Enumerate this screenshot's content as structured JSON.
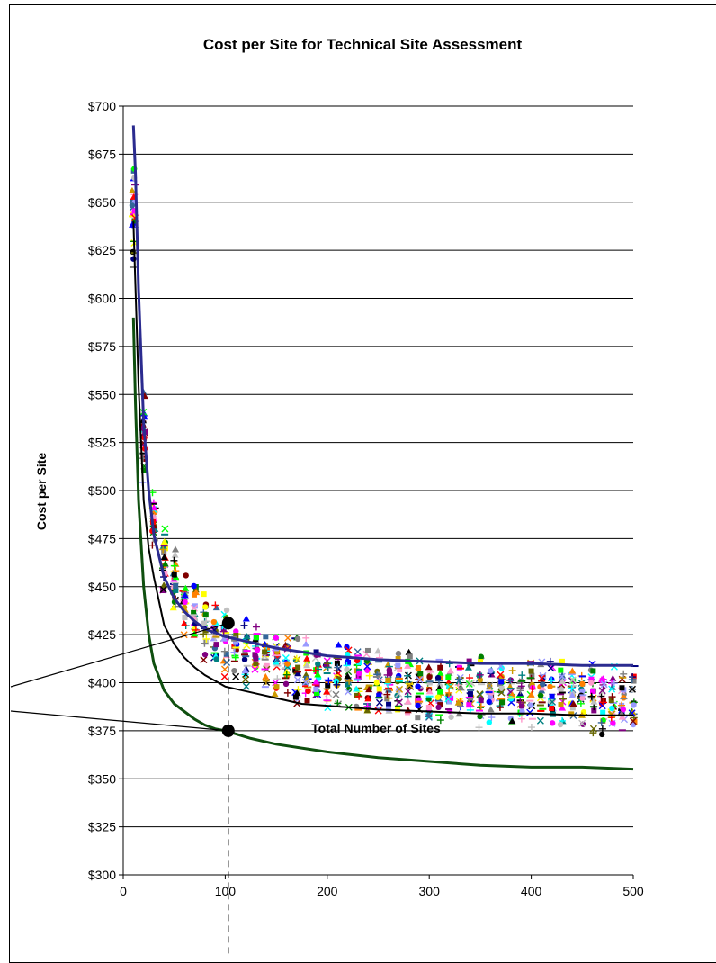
{
  "chart_data": {
    "type": "scatter",
    "title": "Cost per Site for Technical Site Assessment",
    "xlabel": "Total Number of Sites",
    "ylabel": "Cost per Site",
    "xlim": [
      0,
      500
    ],
    "ylim": [
      300,
      700
    ],
    "x_ticks": [
      "0",
      "100",
      "200",
      "300",
      "400",
      "500"
    ],
    "y_ticks": [
      "$300",
      "$325",
      "$350",
      "$375",
      "$400",
      "$425",
      "$450",
      "$475",
      "$500",
      "$525",
      "$550",
      "$575",
      "$600",
      "$625",
      "$650",
      "$675",
      "$700"
    ],
    "grid": "horizontal",
    "legend": "none",
    "colors": {
      "upper_curve": "#2b2b8f",
      "lower_curve": "#0f4f0f",
      "mean_curve": "#000000",
      "gridline": "#000000"
    },
    "series": [
      {
        "role": "upper-bound",
        "style": "line",
        "x": [
          10,
          12,
          15,
          20,
          25,
          30,
          40,
          50,
          60,
          70,
          80,
          90,
          100,
          125,
          150,
          175,
          200,
          250,
          300,
          350,
          400,
          450,
          500
        ],
        "y": [
          690,
          665,
          605,
          535,
          500,
          477,
          455,
          444,
          437,
          432,
          428,
          426,
          424,
          421,
          418,
          416,
          414,
          412,
          411,
          410,
          410,
          409,
          409
        ]
      },
      {
        "role": "lower-bound",
        "style": "line",
        "x": [
          10,
          12,
          15,
          20,
          25,
          30,
          40,
          50,
          60,
          70,
          80,
          90,
          100,
          125,
          150,
          175,
          200,
          250,
          300,
          350,
          400,
          450,
          500
        ],
        "y": [
          590,
          545,
          495,
          450,
          425,
          410,
          396,
          389,
          385,
          381,
          378,
          376,
          375,
          371,
          368,
          366,
          364,
          361,
          359,
          357,
          356,
          356,
          355
        ]
      },
      {
        "role": "mean",
        "style": "line",
        "x": [
          10,
          15,
          20,
          25,
          30,
          40,
          50,
          60,
          70,
          80,
          90,
          100,
          125,
          150,
          175,
          200,
          250,
          300,
          350,
          400,
          450,
          500
        ],
        "y": [
          640,
          555,
          495,
          470,
          455,
          430,
          420,
          413,
          408,
          404,
          401,
          398,
          395,
          392,
          389,
          388,
          386,
          385,
          384,
          384,
          383,
          383
        ]
      }
    ],
    "highlighted_points": [
      {
        "x": 103,
        "y": 431
      },
      {
        "x": 103,
        "y": 375
      }
    ]
  }
}
